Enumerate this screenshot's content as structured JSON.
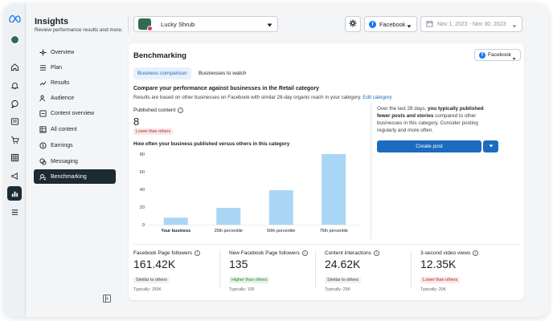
{
  "app": {
    "title": "Insights",
    "subtitle": "Review performance results and more."
  },
  "sidebar": {
    "items": [
      {
        "label": "Overview",
        "icon": "overview-icon"
      },
      {
        "label": "Plan",
        "icon": "plan-icon"
      },
      {
        "label": "Results",
        "icon": "results-icon"
      },
      {
        "label": "Audience",
        "icon": "audience-icon"
      },
      {
        "label": "Content overview",
        "icon": "content-overview-icon"
      },
      {
        "label": "All content",
        "icon": "all-content-icon"
      },
      {
        "label": "Earnings",
        "icon": "earnings-icon"
      },
      {
        "label": "Messaging",
        "icon": "messaging-icon"
      },
      {
        "label": "Benchmarking",
        "icon": "benchmarking-icon"
      }
    ]
  },
  "header": {
    "account": "Lucky Shrub",
    "platform": "Facebook",
    "date_range": "Nov 1, 2023 - Nov 30, 2023"
  },
  "main": {
    "title": "Benchmarking",
    "platform_filter": "Facebook",
    "tabs": [
      {
        "label": "Business comparison"
      },
      {
        "label": "Businesses to watch"
      }
    ],
    "compare_heading": "Compare your performance against businesses in the Retail category",
    "compare_sub": "Results are based on other businesses on Facebook with similar 28-day organic reach in your category.",
    "edit_link": "Edit category",
    "published_label": "Published content",
    "published_value": "8",
    "published_badge": "Lower than others",
    "chart_heading": "How often your business published versus others in this category",
    "insight_prefix": "Over the last 28 days, ",
    "insight_bold": "you typically published fewer posts and stories",
    "insight_suffix": " compared to other businesses in this category. Consider posting regularly and more often.",
    "create_post": "Create post"
  },
  "metrics": [
    {
      "label": "Facebook Page followers",
      "value": "161.42K",
      "badge": "Similar to others",
      "typical": "Typically: 155K"
    },
    {
      "label": "New Facebook Page followers",
      "value": "135",
      "badge": "Higher than others",
      "typical": "Typically: 100"
    },
    {
      "label": "Content interactions",
      "value": "24.62K",
      "badge": "Similar to others",
      "typical": "Typically: 25K"
    },
    {
      "label": "3-second video views",
      "value": "12.35K",
      "badge": "Lower than others",
      "typical": "Typically: 20K"
    }
  ],
  "colors": {
    "accent": "#1b6bbf",
    "bar": "#a9d6f5",
    "active_nav": "#1c2b33"
  },
  "chart_data": {
    "type": "bar",
    "categories": [
      "Your business",
      "25th percentile",
      "50th percentile",
      "75th percentile"
    ],
    "values": [
      8,
      19,
      39,
      80
    ],
    "yticks": [
      "0",
      "20",
      "40",
      "60",
      "80"
    ],
    "ylim": [
      0,
      80
    ],
    "grid": false
  }
}
